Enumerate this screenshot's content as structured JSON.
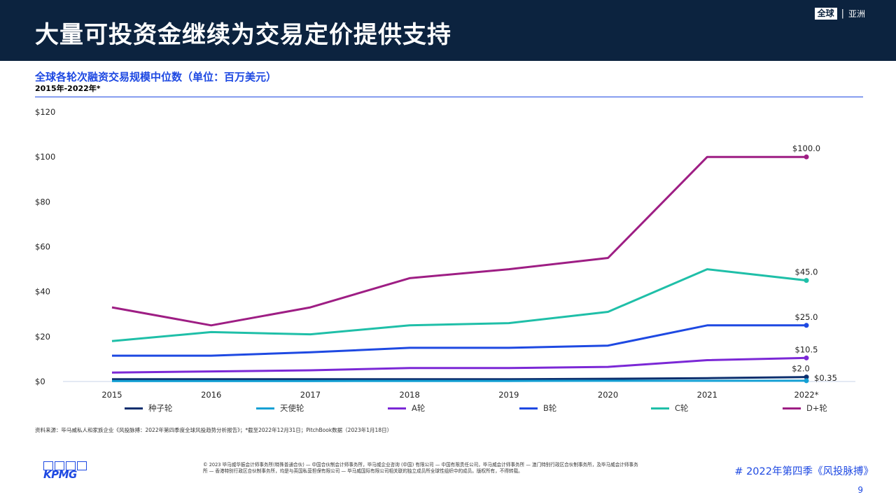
{
  "header": {
    "title": "大量可投资金继续为交易定价提供支持",
    "region_badge": "全球",
    "region_separator": "|",
    "region_label": "亚洲"
  },
  "chart_data": {
    "type": "line",
    "title": "全球各轮次融资交易规模中位数（单位：百万美元）",
    "subtitle": "2015年-2022年*",
    "categories": [
      "2015",
      "2016",
      "2017",
      "2018",
      "2019",
      "2020",
      "2021",
      "2022*"
    ],
    "y_ticks": [
      "$0",
      "$20",
      "$40",
      "$60",
      "$80",
      "$100",
      "$120"
    ],
    "ylim": [
      0,
      120
    ],
    "grid": false,
    "legend_position": "bottom",
    "series": [
      {
        "name": "种子轮",
        "color": "#0c2f6e",
        "values": [
          1,
          1,
          1,
          1,
          1,
          1.2,
          1.5,
          2.0
        ],
        "end_label": "$2.0"
      },
      {
        "name": "天使轮",
        "color": "#14a0d4",
        "values": [
          0.2,
          0.2,
          0.2,
          0.25,
          0.25,
          0.3,
          0.3,
          0.35
        ],
        "end_label": "$0.35"
      },
      {
        "name": "A轮",
        "color": "#7b28d6",
        "values": [
          4,
          4.5,
          5,
          6,
          6,
          6.5,
          9.5,
          10.5
        ],
        "end_label": "$10.5"
      },
      {
        "name": "B轮",
        "color": "#1e49e2",
        "values": [
          11.5,
          11.5,
          13,
          15,
          15,
          16,
          25,
          25
        ],
        "end_label": "$25.0"
      },
      {
        "name": "C轮",
        "color": "#1fbfa8",
        "values": [
          18,
          22,
          21,
          25,
          26,
          31,
          50,
          45
        ],
        "end_label": "$45.0"
      },
      {
        "name": "D+轮",
        "color": "#9e1e84",
        "values": [
          33,
          25,
          33,
          46,
          50,
          55,
          100,
          100
        ],
        "end_label": "$100.0"
      }
    ]
  },
  "source_note": "资料来源：毕马威私人和家族企业《风投脉搏：2022年第四季度全球风投趋势分析报告》；*截至2022年12月31日；PitchBook数据（2023年1月18日）",
  "footer": {
    "logo_text": "KPMG",
    "copyright": "© 2023 毕马威华振会计师事务所(特殊普通合伙) — 中国合伙制会计师事务所，毕马威企业咨询 (中国) 有限公司 — 中国有限责任公司，毕马威会计师事务所 — 澳门特别行政区合伙制事务所，及毕马威会计师事务所 — 香港特别行政区合伙制事务所，均是与英国私营担保有限公司 — 毕马威国际有限公司相关联的独立成员所全球性组织中的成员。版权所有，不得转载。",
    "hashtag": "# 2022年第四季《风投脉搏》",
    "page_number": "9"
  }
}
